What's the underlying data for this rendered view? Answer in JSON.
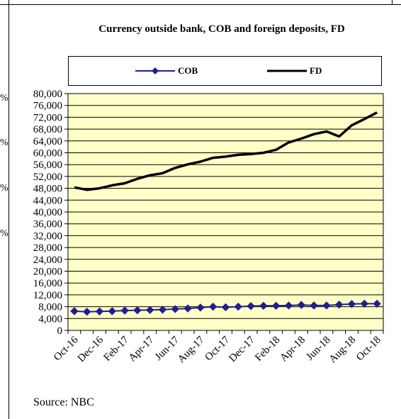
{
  "page": {
    "source": "Source: NBC",
    "left_marks": [
      "%",
      "%",
      "%",
      "%"
    ]
  },
  "chart_data": {
    "type": "line",
    "title": "Currency outside bank, COB and foreign deposits, FD",
    "xlabel": "",
    "ylabel": "",
    "ylim": [
      0,
      80000
    ],
    "yticks": [
      0,
      4000,
      8000,
      12000,
      16000,
      20000,
      24000,
      28000,
      32000,
      36000,
      40000,
      44000,
      48000,
      52000,
      56000,
      60000,
      64000,
      68000,
      72000,
      76000,
      80000
    ],
    "ytick_labels": [
      "0",
      "4,000",
      "8,000",
      "12,000",
      "16,000",
      "20,000",
      "24,000",
      "28,000",
      "32,000",
      "36,000",
      "40,000",
      "44,000",
      "48,000",
      "52,000",
      "56,000",
      "60,000",
      "64,000",
      "68,000",
      "72,000",
      "76,000",
      "80,000"
    ],
    "grid": true,
    "legend": "top",
    "x": [
      "Oct-16",
      "Nov-16",
      "Dec-16",
      "Jan-17",
      "Feb-17",
      "Mar-17",
      "Apr-17",
      "May-17",
      "Jun-17",
      "Jul-17",
      "Aug-17",
      "Sep-17",
      "Oct-17",
      "Nov-17",
      "Dec-17",
      "Jan-18",
      "Feb-18",
      "Mar-18",
      "Apr-18",
      "May-18",
      "Jun-18",
      "Jul-18",
      "Aug-18",
      "Sep-18",
      "Oct-18"
    ],
    "xtick_labels": [
      "Oct-16",
      "Dec-16",
      "Feb-17",
      "Apr-17",
      "Jun-17",
      "Aug-17",
      "Oct-17",
      "Dec-17",
      "Feb-18",
      "Apr-18",
      "Jun-18",
      "Aug-18",
      "Oct-18"
    ],
    "series": [
      {
        "name": "COB",
        "color": "#1f1f8f",
        "marker": "diamond",
        "values": [
          6500,
          6300,
          6400,
          6500,
          6700,
          6800,
          6900,
          7000,
          7200,
          7400,
          7700,
          8000,
          7800,
          8000,
          8200,
          8300,
          8300,
          8400,
          8600,
          8400,
          8400,
          8700,
          8900,
          9000,
          9000
        ]
      },
      {
        "name": "FD",
        "color": "#000000",
        "marker": "none",
        "values": [
          48300,
          47500,
          48000,
          49000,
          49700,
          51200,
          52400,
          53100,
          54900,
          56100,
          57000,
          58300,
          58700,
          59300,
          59600,
          60000,
          61000,
          63500,
          64800,
          66300,
          67200,
          65500,
          69300,
          71400,
          73600
        ]
      }
    ]
  }
}
